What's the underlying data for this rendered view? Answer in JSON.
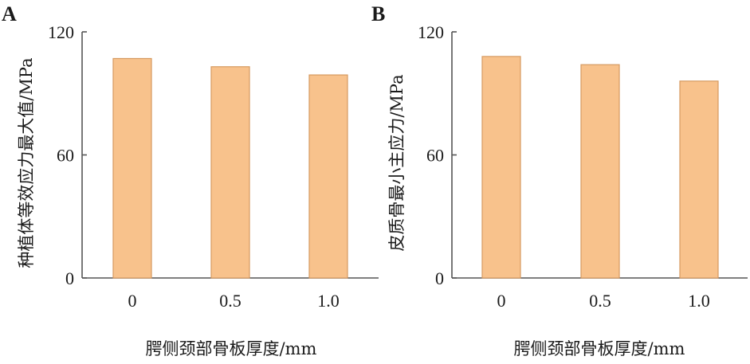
{
  "chart_data": [
    {
      "panel": "A",
      "type": "bar",
      "categories": [
        "0",
        "0.5",
        "1.0"
      ],
      "values": [
        107,
        103,
        99
      ],
      "xlabel": "腭侧颈部骨板厚度/mm",
      "ylabel": "种植体等效应力最大值/MPa",
      "ylim": [
        0,
        120
      ],
      "yticks": [
        "0",
        "60",
        "120"
      ],
      "bar_color": "#f8c28c",
      "grid": false
    },
    {
      "panel": "B",
      "type": "bar",
      "categories": [
        "0",
        "0.5",
        "1.0"
      ],
      "values": [
        108,
        104,
        96
      ],
      "xlabel": "腭侧颈部骨板厚度/mm",
      "ylabel": "皮质骨最小主应力/MPa",
      "ylim": [
        0,
        120
      ],
      "yticks": [
        "0",
        "60",
        "120"
      ],
      "bar_color": "#f8c28c",
      "grid": false
    }
  ]
}
